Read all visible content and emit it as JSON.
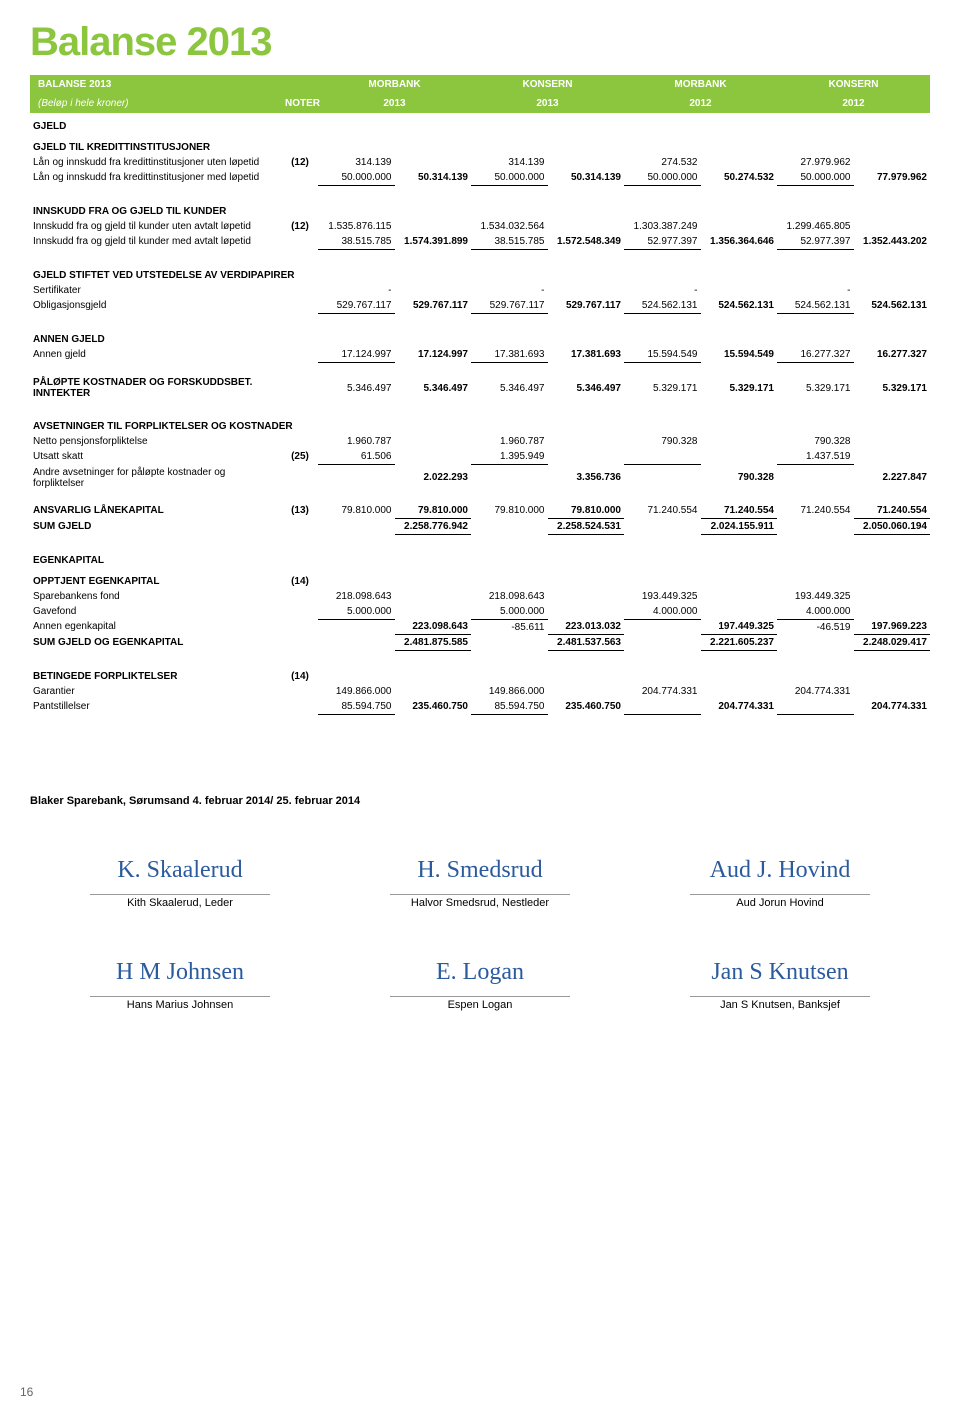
{
  "title": "Balanse 2013",
  "header": {
    "title": "BALANSE 2013",
    "sub": "(Beløp i hele kroner)",
    "noter": "NOTER",
    "col1": "MORBANK",
    "col1b": "2013",
    "col2": "KONSERN",
    "col2b": "2013",
    "col3": "MORBANK",
    "col3b": "2012",
    "col4": "KONSERN",
    "col4b": "2012"
  },
  "s1": {
    "title": "GJELD",
    "sub_title": "GJELD TIL KREDITTINSTITUSJONER",
    "r1": {
      "label": "Lån og innskudd fra kredittinstitusjoner uten løpetid",
      "noter": "(12)",
      "v1": "314.139",
      "v3": "314.139",
      "v5": "274.532",
      "v7": "27.979.962"
    },
    "r2": {
      "label": "Lån og innskudd fra kredittinstitusjoner med løpetid",
      "v1": "50.000.000",
      "v2": "50.314.139",
      "v3": "50.000.000",
      "v4": "50.314.139",
      "v5": "50.000.000",
      "v6": "50.274.532",
      "v7": "50.000.000",
      "v8": "77.979.962"
    }
  },
  "s2": {
    "title": "INNSKUDD FRA OG GJELD TIL KUNDER",
    "r1": {
      "label": "Innskudd fra og gjeld til kunder uten avtalt løpetid",
      "noter": "(12)",
      "v1": "1.535.876.115",
      "v3": "1.534.032.564",
      "v5": "1.303.387.249",
      "v7": "1.299.465.805"
    },
    "r2": {
      "label": "Innskudd fra og gjeld til kunder med avtalt løpetid",
      "v1": "38.515.785",
      "v2": "1.574.391.899",
      "v3": "38.515.785",
      "v4": "1.572.548.349",
      "v5": "52.977.397",
      "v6": "1.356.364.646",
      "v7": "52.977.397",
      "v8": "1.352.443.202"
    }
  },
  "s3": {
    "title": "GJELD STIFTET VED UTSTEDELSE AV VERDIPAPIRER",
    "r1": {
      "label": "Sertifikater",
      "v1": "-",
      "v3": "-",
      "v5": "-",
      "v7": "-"
    },
    "r2": {
      "label": "Obligasjonsgjeld",
      "v1": "529.767.117",
      "v2": "529.767.117",
      "v3": "529.767.117",
      "v4": "529.767.117",
      "v5": "524.562.131",
      "v6": "524.562.131",
      "v7": "524.562.131",
      "v8": "524.562.131"
    }
  },
  "s4": {
    "title": "ANNEN GJELD",
    "r1": {
      "label": "Annen gjeld",
      "v1": "17.124.997",
      "v2": "17.124.997",
      "v3": "17.381.693",
      "v4": "17.381.693",
      "v5": "15.594.549",
      "v6": "15.594.549",
      "v7": "16.277.327",
      "v8": "16.277.327"
    }
  },
  "s5": {
    "r1": {
      "label": "PÅLØPTE KOSTNADER OG FORSKUDDSBET. INNTEKTER",
      "v1": "5.346.497",
      "v2": "5.346.497",
      "v3": "5.346.497",
      "v4": "5.346.497",
      "v5": "5.329.171",
      "v6": "5.329.171",
      "v7": "5.329.171",
      "v8": "5.329.171"
    }
  },
  "s6": {
    "title": "AVSETNINGER TIL FORPLIKTELSER OG KOSTNADER",
    "r1": {
      "label": "Netto pensjonsforpliktelse",
      "v1": "1.960.787",
      "v3": "1.960.787",
      "v5": "790.328",
      "v7": "790.328"
    },
    "r2": {
      "label": "Utsatt skatt",
      "noter": "(25)",
      "v1": "61.506",
      "v3": "1.395.949",
      "v7": "1.437.519"
    },
    "r3": {
      "label": "Andre avsetninger for påløpte kostnader og forpliktelser",
      "v2": "2.022.293",
      "v4": "3.356.736",
      "v6": "790.328",
      "v8": "2.227.847"
    }
  },
  "s7": {
    "r1": {
      "label": "ANSVARLIG LÅNEKAPITAL",
      "noter": "(13)",
      "v1": "79.810.000",
      "v2": "79.810.000",
      "v3": "79.810.000",
      "v4": "79.810.000",
      "v5": "71.240.554",
      "v6": "71.240.554",
      "v7": "71.240.554",
      "v8": "71.240.554"
    },
    "r2": {
      "label": "SUM GJELD",
      "v2": "2.258.776.942",
      "v4": "2.258.524.531",
      "v6": "2.024.155.911",
      "v8": "2.050.060.194"
    }
  },
  "s8": {
    "title": "EGENKAPITAL",
    "sub": "OPPTJENT EGENKAPITAL",
    "noter": "(14)",
    "r1": {
      "label": "Sparebankens fond",
      "v1": "218.098.643",
      "v3": "218.098.643",
      "v5": "193.449.325",
      "v7": "193.449.325"
    },
    "r2": {
      "label": "Gavefond",
      "v1": "5.000.000",
      "v3": "5.000.000",
      "v5": "4.000.000",
      "v7": "4.000.000"
    },
    "r3": {
      "label": "Annen egenkapital",
      "v2": "223.098.643",
      "v3": "-85.611",
      "v4": "223.013.032",
      "v6": "197.449.325",
      "v7": "-46.519",
      "v8": "197.969.223"
    },
    "r4": {
      "label": "SUM GJELD OG EGENKAPITAL",
      "v2": "2.481.875.585",
      "v4": "2.481.537.563",
      "v6": "2.221.605.237",
      "v8": "2.248.029.417"
    }
  },
  "s9": {
    "title": "BETINGEDE FORPLIKTELSER",
    "noter": "(14)",
    "r1": {
      "label": "Garantier",
      "v1": "149.866.000",
      "v3": "149.866.000",
      "v5": "204.774.331",
      "v7": "204.774.331"
    },
    "r2": {
      "label": "Pantstillelser",
      "v1": "85.594.750",
      "v2": "235.460.750",
      "v3": "85.594.750",
      "v4": "235.460.750",
      "v6": "204.774.331",
      "v8": "204.774.331"
    }
  },
  "footer": "Blaker Sparebank, Sørumsand 4. februar 2014/ 25. februar 2014",
  "signatures": {
    "row1": [
      {
        "name": "Kith Skaalerud, Leder"
      },
      {
        "name": "Halvor Smedsrud, Nestleder"
      },
      {
        "name": "Aud Jorun Hovind"
      }
    ],
    "row2": [
      {
        "name": "Hans Marius Johnsen"
      },
      {
        "name": "Espen Logan"
      },
      {
        "name": "Jan S Knutsen, Banksjef"
      }
    ]
  },
  "page": "16"
}
